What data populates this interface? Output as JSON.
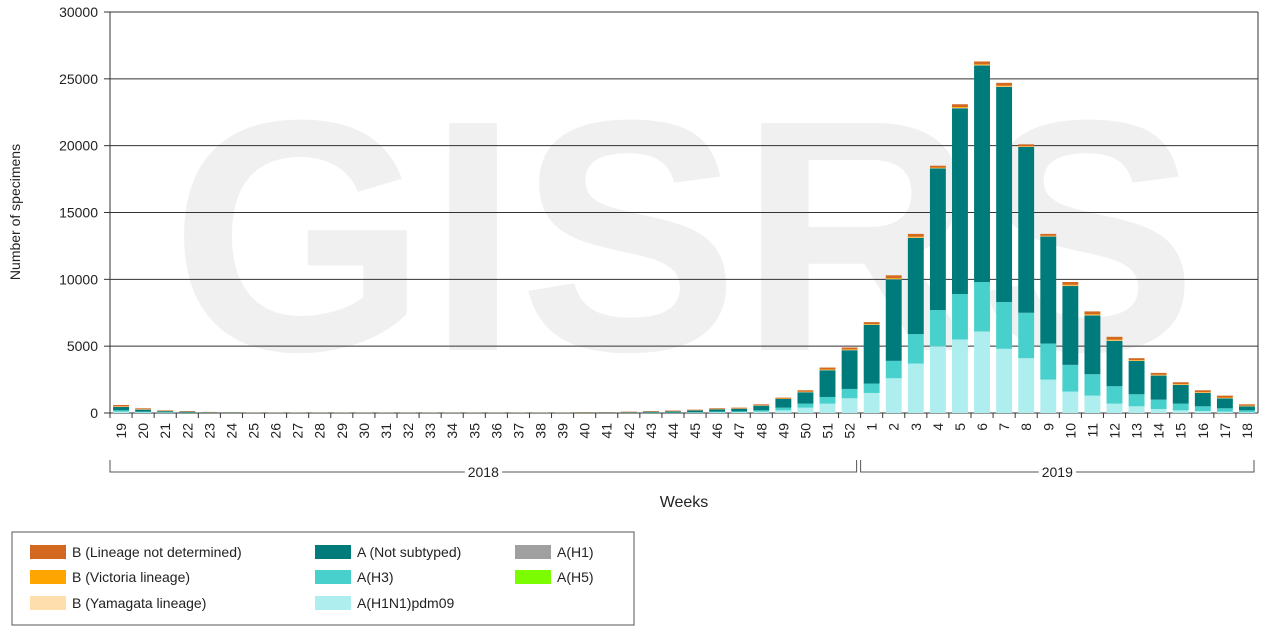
{
  "chart_data": {
    "type": "stacked_bar",
    "watermark": "GISRS",
    "y_label": "Number of specimens",
    "x_label": "Weeks",
    "groups": [
      {
        "label": "2018",
        "categories": [
          "19",
          "20",
          "21",
          "22",
          "23",
          "24",
          "25",
          "26",
          "27",
          "28",
          "29",
          "30",
          "31",
          "32",
          "33",
          "34",
          "35",
          "36",
          "37",
          "38",
          "39",
          "40",
          "41",
          "42",
          "43",
          "44",
          "45",
          "46",
          "47",
          "48",
          "49",
          "50",
          "51",
          "52"
        ]
      },
      {
        "label": "2019",
        "categories": [
          "1",
          "2",
          "3",
          "4",
          "5",
          "6",
          "7",
          "8",
          "9",
          "10",
          "11",
          "12",
          "13",
          "14",
          "15",
          "16",
          "17",
          "18"
        ]
      }
    ],
    "ylim": [
      0,
      30000
    ],
    "yticks": [
      0,
      5000,
      10000,
      15000,
      20000,
      25000,
      30000
    ],
    "grid": true,
    "series": [
      {
        "name": "B (Lineage not determined)",
        "color": "#d2691e",
        "values": [
          100,
          70,
          40,
          35,
          20,
          14,
          10,
          10,
          10,
          10,
          10,
          10,
          10,
          10,
          10,
          10,
          10,
          10,
          10,
          10,
          10,
          20,
          20,
          28,
          35,
          42,
          42,
          50,
          56,
          70,
          70,
          105,
          140,
          140,
          140,
          210,
          210,
          140,
          210,
          210,
          210,
          140,
          140,
          210,
          210,
          210,
          140,
          140,
          140,
          140,
          140,
          105
        ]
      },
      {
        "name": "B (Victoria lineage)",
        "color": "#ffa500",
        "values": [
          30,
          20,
          12,
          10,
          6,
          4,
          3,
          3,
          3,
          3,
          3,
          3,
          3,
          3,
          3,
          3,
          3,
          3,
          3,
          3,
          3,
          6,
          6,
          8,
          10,
          12,
          12,
          14,
          16,
          20,
          20,
          30,
          40,
          40,
          40,
          60,
          60,
          40,
          60,
          60,
          60,
          40,
          40,
          60,
          60,
          60,
          40,
          40,
          40,
          40,
          40,
          30
        ]
      },
      {
        "name": "B (Yamagata lineage)",
        "color": "#ffdead",
        "values": [
          20,
          10,
          8,
          5,
          4,
          2,
          2,
          2,
          2,
          2,
          2,
          2,
          2,
          2,
          2,
          2,
          2,
          2,
          2,
          2,
          2,
          4,
          4,
          4,
          5,
          6,
          6,
          6,
          8,
          10,
          10,
          15,
          20,
          20,
          20,
          30,
          30,
          20,
          30,
          30,
          30,
          20,
          20,
          30,
          30,
          30,
          20,
          20,
          20,
          20,
          20,
          15
        ]
      },
      {
        "name": "A (Not subtyped)",
        "color": "#007b7b",
        "values": [
          250,
          150,
          80,
          60,
          30,
          20,
          10,
          10,
          10,
          10,
          10,
          10,
          10,
          10,
          10,
          10,
          10,
          10,
          10,
          10,
          10,
          20,
          20,
          40,
          60,
          80,
          130,
          180,
          200,
          350,
          650,
          850,
          2000,
          2900,
          4400,
          6100,
          7200,
          10600,
          13900,
          16200,
          16100,
          12400,
          8000,
          5900,
          4400,
          3400,
          2500,
          1800,
          1400,
          1000,
          750,
          300
        ]
      },
      {
        "name": "A(H3)",
        "color": "#48d1cc",
        "values": [
          100,
          50,
          30,
          20,
          10,
          10,
          5,
          5,
          5,
          5,
          5,
          5,
          5,
          5,
          5,
          5,
          5,
          5,
          5,
          5,
          5,
          5,
          10,
          10,
          20,
          20,
          30,
          50,
          60,
          100,
          200,
          300,
          500,
          700,
          700,
          1300,
          2200,
          2700,
          3400,
          3700,
          3500,
          3400,
          2700,
          2000,
          1600,
          1300,
          900,
          700,
          500,
          350,
          250,
          150
        ]
      },
      {
        "name": "A(H1N1)pdm09",
        "color": "#afeeee",
        "values": [
          100,
          50,
          30,
          20,
          10,
          10,
          5,
          5,
          5,
          5,
          5,
          5,
          5,
          5,
          5,
          5,
          5,
          5,
          5,
          5,
          5,
          5,
          10,
          10,
          20,
          20,
          30,
          50,
          60,
          100,
          200,
          400,
          700,
          1100,
          1500,
          2600,
          3700,
          5000,
          5500,
          6100,
          4800,
          4100,
          2500,
          1600,
          1300,
          700,
          500,
          300,
          200,
          150,
          100,
          50
        ]
      },
      {
        "name": "A(H1)",
        "color": "#a0a0a0",
        "values": [
          0,
          0,
          0,
          0,
          0,
          0,
          0,
          0,
          0,
          0,
          0,
          0,
          0,
          0,
          0,
          0,
          0,
          0,
          0,
          0,
          0,
          0,
          0,
          0,
          0,
          0,
          0,
          0,
          0,
          0,
          0,
          0,
          0,
          0,
          0,
          0,
          0,
          0,
          0,
          0,
          0,
          0,
          0,
          0,
          0,
          0,
          0,
          0,
          0,
          0,
          0,
          0
        ]
      },
      {
        "name": "A(H5)",
        "color": "#7cfc00",
        "values": [
          0,
          0,
          0,
          0,
          0,
          0,
          0,
          0,
          0,
          0,
          0,
          0,
          0,
          0,
          0,
          0,
          0,
          0,
          0,
          0,
          0,
          0,
          0,
          0,
          0,
          0,
          0,
          0,
          0,
          0,
          0,
          0,
          0,
          0,
          0,
          0,
          0,
          0,
          0,
          0,
          0,
          0,
          0,
          0,
          0,
          0,
          0,
          0,
          0,
          0,
          0,
          0
        ]
      }
    ]
  }
}
